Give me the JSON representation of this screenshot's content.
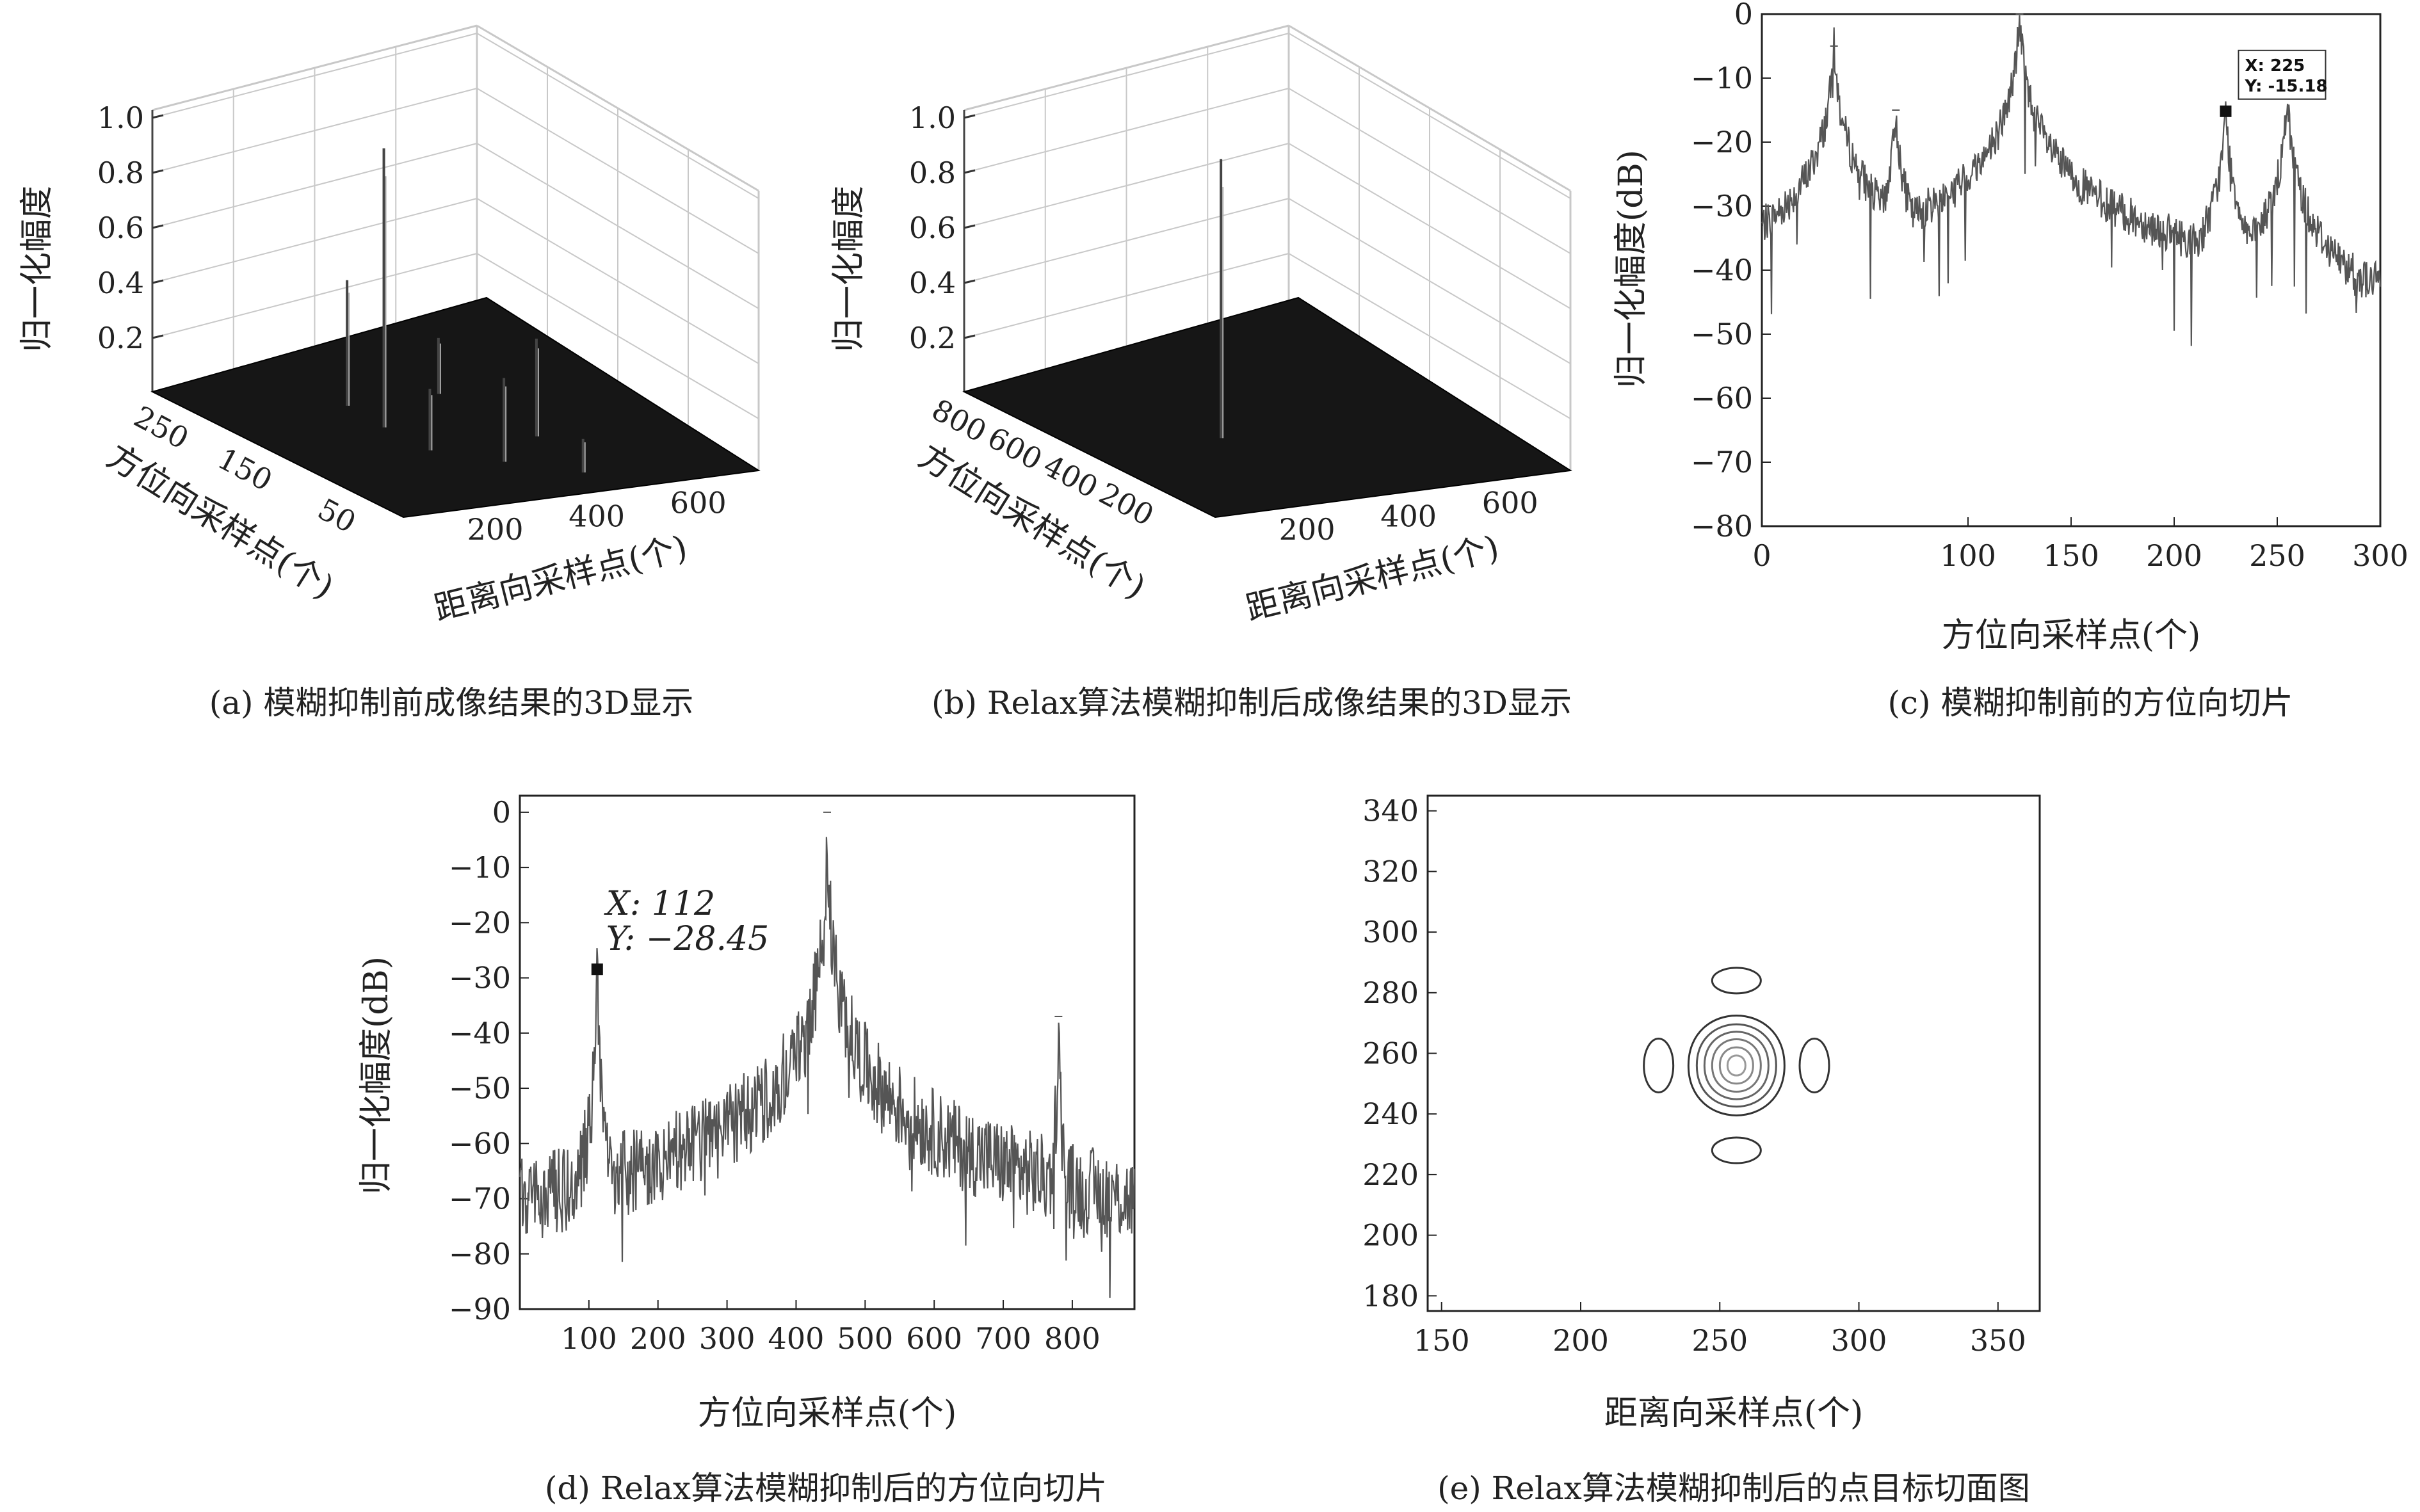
{
  "chart_data": [
    {
      "id": "a",
      "type": "surface3d",
      "caption": "(a) 模糊抑制前成像结果的3D显示",
      "zlabel": "归一化幅度",
      "xlabel": "距离向采样点(个)",
      "ylabel": "方位向采样点(个)",
      "zticks": [
        "1.0",
        "0.8",
        "0.6",
        "0.4",
        "0.2"
      ],
      "xticks": [
        "200",
        "400",
        "600"
      ],
      "yticks": [
        "250",
        "150",
        "50"
      ],
      "spikes": [
        {
          "x": 260,
          "y": 225,
          "z": 0.45
        },
        {
          "x": 250,
          "y": 175,
          "z": 1.0
        },
        {
          "x": 250,
          "y": 120,
          "z": 0.22
        },
        {
          "x": 330,
          "y": 80,
          "z": 0.3
        },
        {
          "x": 420,
          "y": 40,
          "z": 0.12
        },
        {
          "x": 440,
          "y": 225,
          "z": 0.2
        },
        {
          "x": 460,
          "y": 120,
          "z": 0.35
        }
      ]
    },
    {
      "id": "b",
      "type": "surface3d",
      "caption": "(b) Relax算法模糊抑制后成像结果的3D显示",
      "zlabel": "归一化幅度",
      "xlabel": "距离向采样点(个)",
      "ylabel": "方位向采样点(个)",
      "zticks": [
        "1.0",
        "0.8",
        "0.6",
        "0.4",
        "0.2"
      ],
      "xticks": [
        "200",
        "400",
        "600"
      ],
      "yticks": [
        "800",
        "600",
        "400",
        "200"
      ],
      "spikes": [
        {
          "x": 256,
          "y": 445,
          "z": 1.0
        }
      ]
    },
    {
      "id": "c",
      "type": "line",
      "caption": "(c) 模糊抑制前的方位向切片",
      "xlabel": "方位向采样点(个)",
      "ylabel": "归一化幅度(dB)",
      "xlim": [
        0,
        300
      ],
      "ylim": [
        -80,
        0
      ],
      "xticks": [
        "0",
        "100",
        "150",
        "200",
        "250",
        "300"
      ],
      "yticks": [
        "0",
        "-10",
        "-20",
        "-30",
        "-40",
        "-50",
        "-60",
        "-70",
        "-80"
      ],
      "peaks": [
        {
          "x": 35,
          "y": -5
        },
        {
          "x": 65,
          "y": -15
        },
        {
          "x": 125,
          "y": 0
        },
        {
          "x": 225,
          "y": -15.18
        },
        {
          "x": 255,
          "y": -13
        }
      ],
      "datatip": {
        "x": 225,
        "y": -15.18,
        "line1": "X: 225",
        "line2": "Y: -15.18"
      }
    },
    {
      "id": "d",
      "type": "line",
      "caption": "(d) Relax算法模糊抑制后的方位向切片",
      "xlabel": "方位向采样点(个)",
      "ylabel": "归一化幅度(dB)",
      "xlim": [
        0,
        890
      ],
      "ylim": [
        -90,
        3
      ],
      "xticks": [
        "100",
        "200",
        "300",
        "400",
        "500",
        "600",
        "700",
        "800"
      ],
      "yticks": [
        "0",
        "-10",
        "-20",
        "-30",
        "-40",
        "-50",
        "-60",
        "-70",
        "-80",
        "-90"
      ],
      "peaks": [
        {
          "x": 112,
          "y": -28.45
        },
        {
          "x": 445,
          "y": 0
        },
        {
          "x": 780,
          "y": -37
        }
      ],
      "datatip": {
        "x": 112,
        "y": -28.45,
        "line1": "X: 112",
        "line2": "Y: −28.45"
      }
    },
    {
      "id": "e",
      "type": "contour",
      "caption": "(e) Relax算法模糊抑制后的点目标切面图",
      "xlabel": "距离向采样点(个)",
      "ylabel": "",
      "xlim": [
        145,
        365
      ],
      "ylim": [
        175,
        345
      ],
      "xticks": [
        "150",
        "200",
        "250",
        "300",
        "350"
      ],
      "yticks": [
        "340",
        "320",
        "300",
        "280",
        "260",
        "240",
        "220",
        "200",
        "180"
      ],
      "center": {
        "x": 256,
        "y": 256
      },
      "sidelobes": [
        {
          "x": 256,
          "y": 284
        },
        {
          "x": 256,
          "y": 228
        },
        {
          "x": 228,
          "y": 256
        },
        {
          "x": 284,
          "y": 256
        }
      ]
    }
  ]
}
